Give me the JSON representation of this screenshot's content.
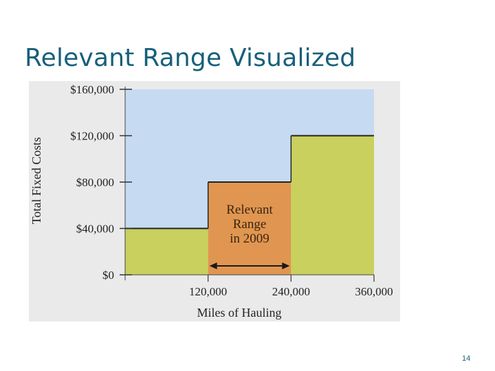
{
  "slide": {
    "title": "Relevant Range Visualized",
    "page_number": "14"
  },
  "chart_data": {
    "type": "step-area",
    "xlabel": "Miles of Hauling",
    "ylabel": "Total Fixed Costs",
    "x_ticks": [
      {
        "value": 120000,
        "label": "120,000"
      },
      {
        "value": 240000,
        "label": "240,000"
      },
      {
        "value": 360000,
        "label": "360,000"
      }
    ],
    "y_ticks": [
      {
        "value": 0,
        "label": "$0"
      },
      {
        "value": 40000,
        "label": "$40,000"
      },
      {
        "value": 80000,
        "label": "$80,000"
      },
      {
        "value": 120000,
        "label": "$120,000"
      },
      {
        "value": 160000,
        "label": "$160,000"
      }
    ],
    "xlim": [
      0,
      360000
    ],
    "ylim": [
      0,
      160000
    ],
    "steps": [
      {
        "x_start": 0,
        "x_end": 120000,
        "value": 40000
      },
      {
        "x_start": 120000,
        "x_end": 240000,
        "value": 80000,
        "highlight": true
      },
      {
        "x_start": 240000,
        "x_end": 360000,
        "value": 120000
      }
    ],
    "annotation": {
      "lines": [
        "Relevant",
        "Range",
        "in 2009"
      ],
      "x_start": 120000,
      "x_end": 240000
    },
    "colors": {
      "panel": "#eaeaea",
      "background": "#c6dbf2",
      "step_fill": "#c9d05e",
      "highlight_fill": "#e09650",
      "step_line": "#222222",
      "title": "#17607a"
    }
  }
}
